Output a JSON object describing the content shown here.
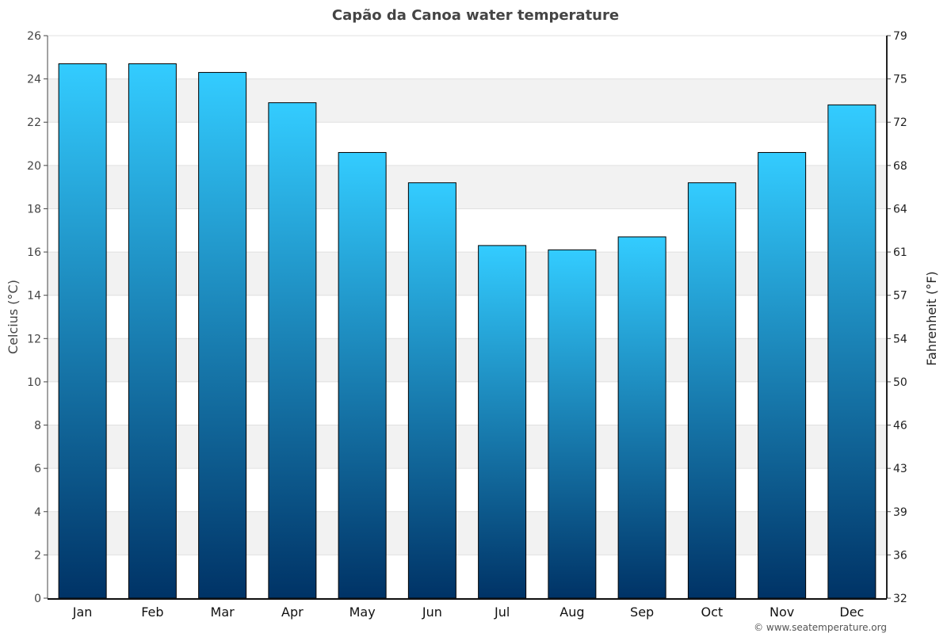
{
  "chart_data": {
    "type": "bar",
    "title": "Capão da Canoa water temperature",
    "ylabel": "Celcius (°C)",
    "ylabel_right": "Fahrenheit (°F)",
    "categories": [
      "Jan",
      "Feb",
      "Mar",
      "Apr",
      "May",
      "Jun",
      "Jul",
      "Aug",
      "Sep",
      "Oct",
      "Nov",
      "Dec"
    ],
    "values": [
      24.7,
      24.7,
      24.3,
      22.9,
      20.6,
      19.2,
      16.3,
      16.1,
      16.7,
      19.2,
      20.6,
      22.8
    ],
    "ylim": [
      0,
      26
    ],
    "yticks": [
      0,
      2,
      4,
      6,
      8,
      10,
      12,
      14,
      16,
      18,
      20,
      22,
      24,
      26
    ],
    "yticks_right": [
      "32",
      "36",
      "39",
      "43",
      "46",
      "50",
      "54",
      "57",
      "61",
      "64",
      "68",
      "72",
      "75",
      "79"
    ],
    "grid": "alternating horizontal bands",
    "colors": {
      "bar_top": "#33ccff",
      "bar_bottom": "#003366",
      "band": "#f2f2f2"
    },
    "credit": "© www.seatemperature.org"
  }
}
